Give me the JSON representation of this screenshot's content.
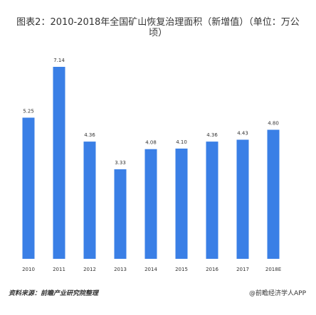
{
  "chart_data": {
    "type": "bar",
    "title": "图表2：2010-2018年全国矿山恢复治理面积（新增值）（单位：万公顷）",
    "categories": [
      "2010",
      "2011",
      "2012",
      "2013",
      "2014",
      "2015",
      "2016",
      "2017",
      "2018E"
    ],
    "values": [
      5.25,
      7.14,
      4.36,
      3.33,
      4.08,
      4.1,
      4.36,
      4.43,
      4.8
    ],
    "data_labels": [
      "5.25",
      "7.14",
      "4.36",
      "3.33",
      "4.08",
      "4.10",
      "4.36",
      "4.43",
      "4.80"
    ],
    "xlabel": "",
    "ylabel": "",
    "ylim": [
      0,
      7.5
    ],
    "grid": false,
    "bar_color": "#3A7FE6"
  },
  "footer": {
    "source": "资料来源：前瞻产业研究院整理",
    "brand": "@前瞻经济学人APP"
  }
}
